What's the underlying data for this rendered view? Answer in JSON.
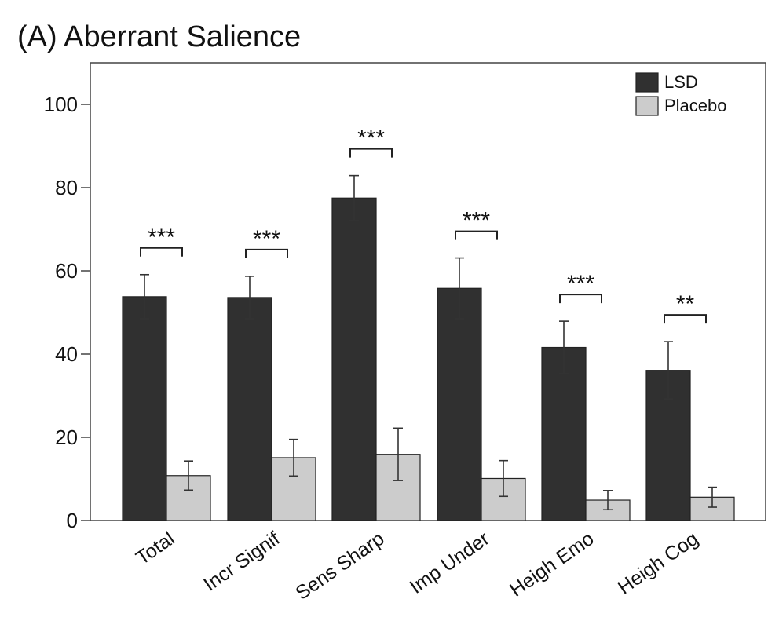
{
  "chart_data": {
    "type": "bar",
    "title": "(A) Aberrant Salience",
    "xlabel": "",
    "ylabel": "",
    "ylim": [
      0,
      110
    ],
    "yticks": [
      0,
      20,
      40,
      60,
      80,
      100
    ],
    "grid": false,
    "legend_position": "top-right",
    "categories": [
      "Total",
      "Incr Signif",
      "Sens Sharp",
      "Imp Under",
      "Heigh Emo",
      "Heigh Cog"
    ],
    "series": [
      {
        "name": "LSD",
        "color": "#303030",
        "values": [
          53.8,
          53.6,
          77.5,
          55.8,
          41.6,
          36.1
        ],
        "error": [
          5.3,
          5.1,
          5.4,
          7.3,
          6.3,
          6.9
        ]
      },
      {
        "name": "Placebo",
        "color": "#cccccc",
        "values": [
          10.8,
          15.1,
          15.9,
          10.1,
          4.9,
          5.6
        ],
        "error": [
          3.5,
          4.4,
          6.3,
          4.3,
          2.3,
          2.4
        ]
      }
    ],
    "significance": [
      "***",
      "***",
      "***",
      "***",
      "***",
      "**"
    ]
  }
}
